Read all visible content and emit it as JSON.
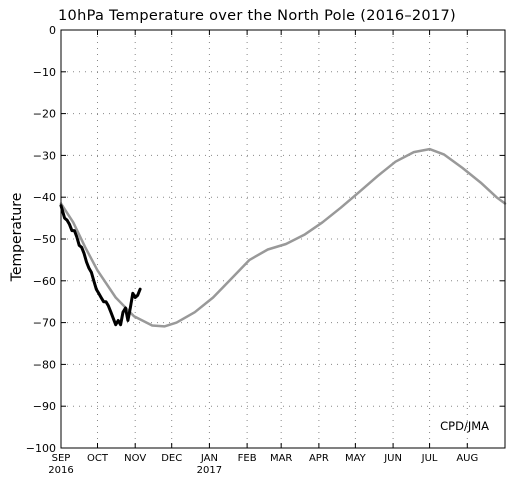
{
  "chart_data": {
    "type": "line",
    "title": "10hPa Temperature over the North Pole (2016–2017)",
    "ylabel": "Temperature",
    "xlabel": "",
    "ylim": [
      -100,
      0
    ],
    "yticks": [
      0,
      -10,
      -20,
      -30,
      -40,
      -50,
      -60,
      -70,
      -80,
      -90,
      -100
    ],
    "ytick_labels": [
      "0",
      "−10",
      "−20",
      "−30",
      "−40",
      "−50",
      "−60",
      "−70",
      "−80",
      "−90",
      "−100"
    ],
    "x_unit": "days since 1 SEP 2016",
    "xlim": [
      0,
      365
    ],
    "xticks": [
      {
        "day": 0,
        "label": "SEP",
        "sub": "2016"
      },
      {
        "day": 30,
        "label": "OCT",
        "sub": ""
      },
      {
        "day": 61,
        "label": "NOV",
        "sub": ""
      },
      {
        "day": 91,
        "label": "DEC",
        "sub": ""
      },
      {
        "day": 122,
        "label": "JAN",
        "sub": "2017"
      },
      {
        "day": 153,
        "label": "FEB",
        "sub": ""
      },
      {
        "day": 181,
        "label": "MAR",
        "sub": ""
      },
      {
        "day": 212,
        "label": "APR",
        "sub": ""
      },
      {
        "day": 242,
        "label": "MAY",
        "sub": ""
      },
      {
        "day": 273,
        "label": "JUN",
        "sub": ""
      },
      {
        "day": 303,
        "label": "JUL",
        "sub": ""
      },
      {
        "day": 334,
        "label": "AUG",
        "sub": ""
      }
    ],
    "grid": true,
    "credit": "CPD/JMA",
    "series": [
      {
        "name": "",
        "color": "#999999",
        "points": [
          [
            0,
            -41.5
          ],
          [
            10,
            -46
          ],
          [
            20,
            -52
          ],
          [
            30,
            -57.5
          ],
          [
            45,
            -64
          ],
          [
            60,
            -68.5
          ],
          [
            75,
            -70.7
          ],
          [
            85,
            -70.9
          ],
          [
            95,
            -70
          ],
          [
            110,
            -67.5
          ],
          [
            125,
            -64
          ],
          [
            140,
            -59.5
          ],
          [
            155,
            -55
          ],
          [
            170,
            -52.5
          ],
          [
            185,
            -51.2
          ],
          [
            200,
            -49
          ],
          [
            215,
            -46
          ],
          [
            230,
            -42.5
          ],
          [
            245,
            -38.8
          ],
          [
            260,
            -35
          ],
          [
            275,
            -31.5
          ],
          [
            290,
            -29.2
          ],
          [
            303,
            -28.5
          ],
          [
            315,
            -29.8
          ],
          [
            330,
            -33
          ],
          [
            345,
            -36.5
          ],
          [
            358,
            -40
          ],
          [
            365,
            -41.5
          ]
        ]
      },
      {
        "name": "",
        "color": "#000000",
        "points": [
          [
            0,
            -42
          ],
          [
            2,
            -44
          ],
          [
            3,
            -45
          ],
          [
            5,
            -45.5
          ],
          [
            7,
            -46.5
          ],
          [
            9,
            -48
          ],
          [
            11,
            -48
          ],
          [
            13,
            -49.5
          ],
          [
            15,
            -51.5
          ],
          [
            17,
            -52
          ],
          [
            19,
            -53.5
          ],
          [
            21,
            -55.5
          ],
          [
            23,
            -57
          ],
          [
            25,
            -58
          ],
          [
            27,
            -60
          ],
          [
            29,
            -62
          ],
          [
            31,
            -63
          ],
          [
            33,
            -64
          ],
          [
            35,
            -65
          ],
          [
            37,
            -65
          ],
          [
            39,
            -66
          ],
          [
            41,
            -67.5
          ],
          [
            43,
            -69
          ],
          [
            45,
            -70.5
          ],
          [
            47,
            -69.5
          ],
          [
            49,
            -70.5
          ],
          [
            51,
            -67.5
          ],
          [
            53,
            -66.5
          ],
          [
            55,
            -69.5
          ],
          [
            57,
            -66.5
          ],
          [
            59,
            -63
          ],
          [
            61,
            -64
          ],
          [
            63,
            -63.5
          ],
          [
            65,
            -62
          ]
        ]
      }
    ]
  }
}
